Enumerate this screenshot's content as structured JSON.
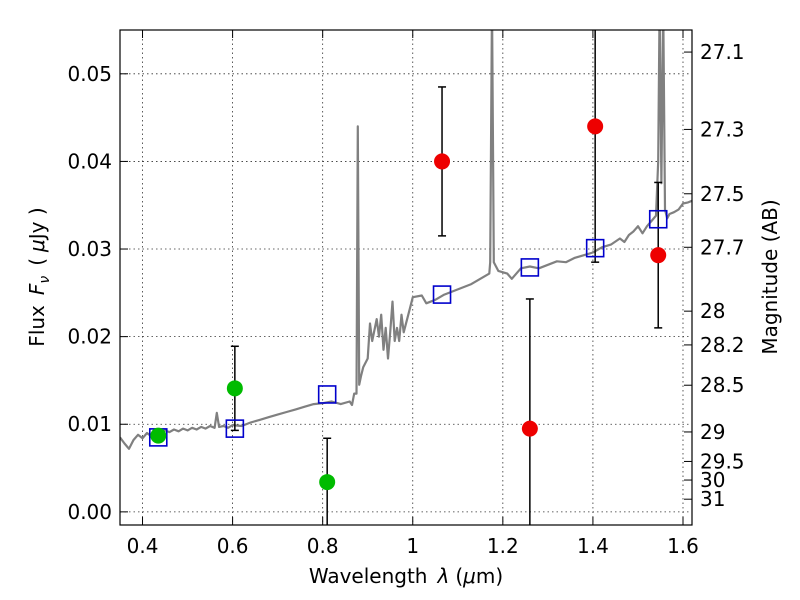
{
  "chart_data": {
    "type": "scatter",
    "xlabel_text": "Wavelength",
    "xlabel_symbol": "λ",
    "xlabel_unit_open": "(",
    "xlabel_unit_mu": "μ",
    "xlabel_unit_rest": "m)",
    "ylabel_text": "Flux",
    "ylabel_symbol": "F",
    "ylabel_subscript": "ν",
    "ylabel_unit_open": "(",
    "ylabel_unit_mu": "μ",
    "ylabel_unit_rest": "Jy )",
    "y2label": "Magnitude (AB)",
    "xlim": [
      0.35,
      1.62
    ],
    "ylim": [
      -0.0015,
      0.055
    ],
    "grid": true,
    "x_ticks": [
      0.4,
      0.6,
      0.8,
      1.0,
      1.2,
      1.4,
      1.6
    ],
    "x_tick_labels": [
      "0.4",
      "0.6",
      "0.8",
      "1",
      "1.2",
      "1.4",
      "1.6"
    ],
    "y_ticks": [
      0.0,
      0.01,
      0.02,
      0.03,
      0.04,
      0.05
    ],
    "y_tick_labels": [
      "0.00",
      "0.01",
      "0.02",
      "0.03",
      "0.04",
      "0.05"
    ],
    "mag_ticks": [
      27.1,
      27.3,
      27.5,
      27.7,
      28,
      28.2,
      28.5,
      29,
      29.5,
      30,
      31
    ],
    "mag_tick_labels": [
      "27.1",
      "27.3",
      "27.5",
      "27.7",
      "28",
      "28.2",
      "28.5",
      "29",
      "29.5",
      "30",
      "31"
    ],
    "series": [
      {
        "kind": "spectrum",
        "color": "#808080",
        "points": [
          [
            0.35,
            0.0085
          ],
          [
            0.36,
            0.0078
          ],
          [
            0.37,
            0.0072
          ],
          [
            0.38,
            0.0082
          ],
          [
            0.39,
            0.0088
          ],
          [
            0.4,
            0.0084
          ],
          [
            0.41,
            0.009
          ],
          [
            0.42,
            0.0086
          ],
          [
            0.43,
            0.0092
          ],
          [
            0.44,
            0.0089
          ],
          [
            0.45,
            0.0093
          ],
          [
            0.46,
            0.0091
          ],
          [
            0.47,
            0.0094
          ],
          [
            0.48,
            0.0092
          ],
          [
            0.49,
            0.0095
          ],
          [
            0.5,
            0.0093
          ],
          [
            0.51,
            0.0096
          ],
          [
            0.52,
            0.0094
          ],
          [
            0.53,
            0.0097
          ],
          [
            0.54,
            0.0095
          ],
          [
            0.55,
            0.0098
          ],
          [
            0.56,
            0.0096
          ],
          [
            0.565,
            0.0113
          ],
          [
            0.57,
            0.0097
          ],
          [
            0.58,
            0.0098
          ],
          [
            0.59,
            0.0096
          ],
          [
            0.6,
            0.0099
          ],
          [
            0.62,
            0.0098
          ],
          [
            0.64,
            0.0102
          ],
          [
            0.66,
            0.0105
          ],
          [
            0.68,
            0.0108
          ],
          [
            0.7,
            0.0111
          ],
          [
            0.72,
            0.0114
          ],
          [
            0.74,
            0.0117
          ],
          [
            0.76,
            0.012
          ],
          [
            0.78,
            0.0123
          ],
          [
            0.8,
            0.0124
          ],
          [
            0.82,
            0.0126
          ],
          [
            0.84,
            0.0123
          ],
          [
            0.86,
            0.0126
          ],
          [
            0.865,
            0.0122
          ],
          [
            0.87,
            0.0135
          ],
          [
            0.875,
            0.0135
          ],
          [
            0.878,
            0.044
          ],
          [
            0.881,
            0.0145
          ],
          [
            0.885,
            0.0155
          ],
          [
            0.89,
            0.0165
          ],
          [
            0.9,
            0.0175
          ],
          [
            0.905,
            0.0215
          ],
          [
            0.91,
            0.0195
          ],
          [
            0.92,
            0.022
          ],
          [
            0.925,
            0.02
          ],
          [
            0.93,
            0.0225
          ],
          [
            0.935,
            0.0185
          ],
          [
            0.94,
            0.021
          ],
          [
            0.945,
            0.0175
          ],
          [
            0.95,
            0.0205
          ],
          [
            0.955,
            0.024
          ],
          [
            0.96,
            0.0195
          ],
          [
            0.965,
            0.021
          ],
          [
            0.97,
            0.0195
          ],
          [
            0.975,
            0.0225
          ],
          [
            0.98,
            0.0205
          ],
          [
            0.99,
            0.0225
          ],
          [
            1.0,
            0.0245
          ],
          [
            1.02,
            0.0247
          ],
          [
            1.03,
            0.0238
          ],
          [
            1.05,
            0.0242
          ],
          [
            1.07,
            0.0248
          ],
          [
            1.09,
            0.0252
          ],
          [
            1.11,
            0.0256
          ],
          [
            1.13,
            0.026
          ],
          [
            1.15,
            0.0266
          ],
          [
            1.17,
            0.0272
          ],
          [
            1.172,
            0.0285
          ],
          [
            1.176,
            0.058
          ],
          [
            1.18,
            0.0285
          ],
          [
            1.19,
            0.0275
          ],
          [
            1.21,
            0.0272
          ],
          [
            1.22,
            0.0266
          ],
          [
            1.24,
            0.0278
          ],
          [
            1.26,
            0.028
          ],
          [
            1.28,
            0.0278
          ],
          [
            1.3,
            0.0282
          ],
          [
            1.32,
            0.0286
          ],
          [
            1.34,
            0.0285
          ],
          [
            1.36,
            0.029
          ],
          [
            1.38,
            0.0293
          ],
          [
            1.4,
            0.0296
          ],
          [
            1.42,
            0.0302
          ],
          [
            1.44,
            0.0305
          ],
          [
            1.46,
            0.0312
          ],
          [
            1.47,
            0.0308
          ],
          [
            1.48,
            0.0316
          ],
          [
            1.49,
            0.032
          ],
          [
            1.5,
            0.0326
          ],
          [
            1.51,
            0.0318
          ],
          [
            1.52,
            0.0326
          ],
          [
            1.53,
            0.0332
          ],
          [
            1.54,
            0.0338
          ],
          [
            1.545,
            0.04
          ],
          [
            1.548,
            0.058
          ],
          [
            1.552,
            0.0375
          ],
          [
            1.556,
            0.058
          ],
          [
            1.56,
            0.0345
          ],
          [
            1.565,
            0.0335
          ],
          [
            1.57,
            0.034
          ],
          [
            1.58,
            0.0342
          ],
          [
            1.59,
            0.0345
          ],
          [
            1.6,
            0.0352
          ],
          [
            1.61,
            0.0353
          ],
          [
            1.62,
            0.0355
          ]
        ]
      },
      {
        "kind": "model_photometry",
        "marker": "open-square",
        "color": "#0000cc",
        "x": [
          0.435,
          0.605,
          0.81,
          1.065,
          1.26,
          1.405,
          1.545
        ],
        "y": [
          0.0085,
          0.0095,
          0.0134,
          0.0248,
          0.0279,
          0.0301,
          0.0334
        ]
      },
      {
        "kind": "observed_optical",
        "marker": "filled-circle",
        "color": "#00bb00",
        "x": [
          0.435,
          0.605,
          0.81
        ],
        "y": [
          0.0087,
          0.0141,
          0.0034
        ],
        "yerr": [
          0.0,
          0.0048,
          0.005
        ]
      },
      {
        "kind": "observed_nir",
        "marker": "filled-circle",
        "color": "#ee0000",
        "x": [
          1.065,
          1.26,
          1.405,
          1.545
        ],
        "y": [
          0.04,
          0.0095,
          0.044,
          0.0293
        ],
        "yerr": [
          0.0085,
          0.0148,
          0.0155,
          0.0083
        ]
      }
    ]
  }
}
